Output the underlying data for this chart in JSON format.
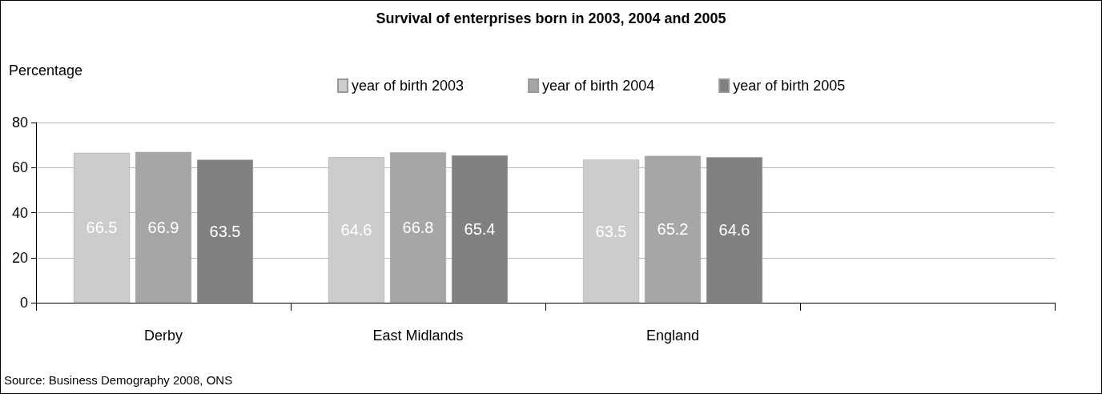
{
  "chart_data": {
    "type": "bar",
    "title": "Survival of enterprises born in 2003, 2004 and 2005",
    "ylabel": "Percentage",
    "annotations": [
      "Source: Business Demography 2008, ONS"
    ],
    "categories": [
      "Derby",
      "East Midlands",
      "England",
      null
    ],
    "series": [
      {
        "name": "year of birth 2003",
        "color": "#cccccc",
        "values": [
          66.5,
          64.6,
          63.5,
          null
        ]
      },
      {
        "name": "year of birth 2004",
        "color": "#a6a6a6",
        "values": [
          66.9,
          66.8,
          65.2,
          null
        ]
      },
      {
        "name": "year of birth 2005",
        "color": "#808080",
        "values": [
          63.5,
          65.4,
          64.6,
          null
        ]
      }
    ],
    "ylim": [
      0,
      80
    ],
    "yticks": [
      0,
      20,
      40,
      60,
      80
    ],
    "grid": "y",
    "legend": "top",
    "data_labels": true
  }
}
